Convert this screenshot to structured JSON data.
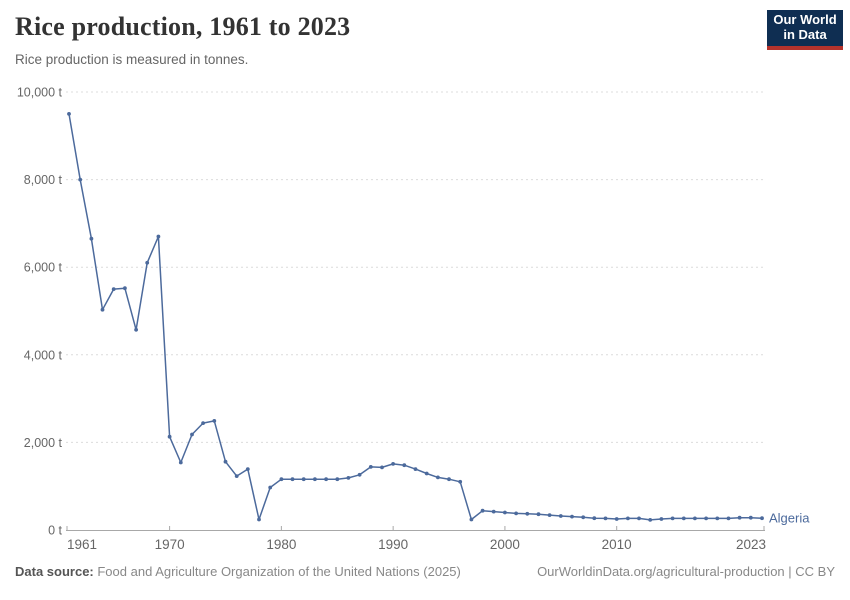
{
  "header": {
    "title": "Rice production, 1961 to 2023",
    "subtitle": "Rice production is measured in tonnes.",
    "logo": {
      "line1": "Our World",
      "line2": "in Data",
      "bg_color": "#0f2e52",
      "accent_color": "#b5332c"
    }
  },
  "chart_data": {
    "type": "line",
    "title": "Rice production, 1961 to 2023",
    "unit": "t",
    "xlabel": "",
    "ylabel": "",
    "xlim": [
      1961,
      2023
    ],
    "ylim": [
      0,
      10000
    ],
    "grid": "horizontal-dashed",
    "legend_position": "end-of-line",
    "x_ticks": [
      1961,
      1970,
      1980,
      1990,
      2000,
      2010,
      2023
    ],
    "y_ticks": [
      0,
      2000,
      4000,
      6000,
      8000,
      10000
    ],
    "y_tick_labels": [
      "0 t",
      "2,000 t",
      "4,000 t",
      "6,000 t",
      "8,000 t",
      "10,000 t"
    ],
    "series": [
      {
        "name": "Algeria",
        "color": "#4c6a9c",
        "years": [
          1961,
          1962,
          1963,
          1964,
          1965,
          1966,
          1967,
          1968,
          1969,
          1970,
          1971,
          1972,
          1973,
          1974,
          1975,
          1976,
          1977,
          1978,
          1979,
          1980,
          1981,
          1982,
          1983,
          1984,
          1985,
          1986,
          1987,
          1988,
          1989,
          1990,
          1991,
          1992,
          1993,
          1994,
          1995,
          1996,
          1997,
          1998,
          1999,
          2000,
          2001,
          2002,
          2003,
          2004,
          2005,
          2006,
          2007,
          2008,
          2009,
          2010,
          2011,
          2012,
          2013,
          2014,
          2015,
          2016,
          2017,
          2018,
          2019,
          2020,
          2021,
          2022,
          2023
        ],
        "values": [
          9500,
          8000,
          6650,
          5030,
          5500,
          5520,
          4570,
          6100,
          6700,
          2130,
          1540,
          2180,
          2440,
          2490,
          1560,
          1230,
          1390,
          240,
          970,
          1160,
          1160,
          1160,
          1160,
          1160,
          1160,
          1190,
          1260,
          1440,
          1430,
          1510,
          1480,
          1390,
          1290,
          1200,
          1160,
          1100,
          240,
          440,
          420,
          400,
          380,
          370,
          360,
          340,
          320,
          305,
          290,
          270,
          265,
          250,
          265,
          265,
          230,
          250,
          265,
          265,
          265,
          265,
          265,
          265,
          280,
          280,
          270
        ]
      }
    ],
    "colors": {
      "gridline": "#dcdcdc",
      "axis": "#a8a8a8",
      "tick_label": "#666666"
    }
  },
  "footer": {
    "source_label": "Data source:",
    "source_text": " Food and Agriculture Organization of the United Nations (2025)",
    "link_text": "OurWorldinData.org/agricultural-production | CC BY"
  }
}
